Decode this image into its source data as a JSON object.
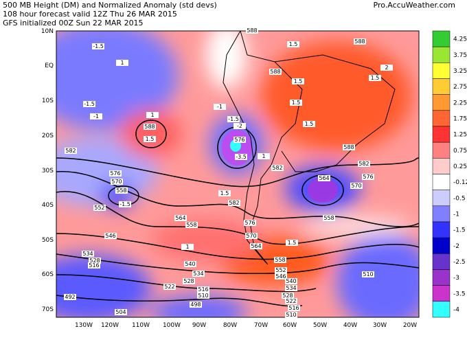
{
  "header": {
    "lines": [
      "500 MB Height (DM) and Normalized Anomaly (std devs)",
      "108 hour forecast valid 12Z Thu 26 MAR 2015",
      "GFS initialized 00Z Sun 22 MAR 2015"
    ],
    "source": "Pro.AccuWeather.com"
  },
  "lat_labels": [
    "10N",
    "EQ",
    "10S",
    "20S",
    "30S",
    "40S",
    "50S",
    "60S",
    "70S"
  ],
  "lon_labels": [
    "130W",
    "120W",
    "110W",
    "100W",
    "90W",
    "80W",
    "70W",
    "60W",
    "50W",
    "40W",
    "30W",
    "20W"
  ],
  "colorbar": [
    {
      "label": "4.25",
      "color": "#33cc33"
    },
    {
      "label": "3.75",
      "color": "#99e633"
    },
    {
      "label": "3.25",
      "color": "#ffff33"
    },
    {
      "label": "2.75",
      "color": "#ffcc33"
    },
    {
      "label": "2.25",
      "color": "#ff9933"
    },
    {
      "label": "1.75",
      "color": "#ff6633"
    },
    {
      "label": "1.25",
      "color": "#ff3333"
    },
    {
      "label": "0.75",
      "color": "#ff8080"
    },
    {
      "label": "0.25",
      "color": "#ffcccc"
    },
    {
      "label": "-0.125",
      "color": "#ffffff"
    },
    {
      "label": "-0.5",
      "color": "#ccccff"
    },
    {
      "label": "-1",
      "color": "#8080ff"
    },
    {
      "label": "-1.5",
      "color": "#3333ff"
    },
    {
      "label": "-2",
      "color": "#0000cc"
    },
    {
      "label": "-2.5",
      "color": "#6633cc"
    },
    {
      "label": "-3",
      "color": "#9933cc"
    },
    {
      "label": "-3.5",
      "color": "#cc33cc"
    },
    {
      "label": "-4",
      "color": "#33ffff"
    }
  ],
  "contour_labels": [
    "588",
    "588",
    "1.5",
    "-1.5",
    "1",
    "588",
    "1.5",
    "2",
    "1.5",
    "-1.5",
    "-1",
    "1",
    "588",
    "1.5",
    "-1",
    "-1.5",
    "-2",
    "576",
    "-3.5",
    "1",
    "1.5",
    "1.5",
    "588",
    "582",
    "582",
    "582",
    "576",
    "570",
    "558",
    "552",
    "-1.5",
    "564",
    "570",
    "576",
    "1.5",
    "582",
    "564",
    "558",
    "576",
    "546",
    "570",
    "564",
    "1",
    "1.5",
    "558",
    "552",
    "546",
    "540",
    "534",
    "528",
    "522",
    "516",
    "510",
    "540",
    "534",
    "528",
    "522",
    "516",
    "510",
    "498",
    "504",
    "492",
    "510",
    "534",
    "528",
    "516",
    "558"
  ]
}
